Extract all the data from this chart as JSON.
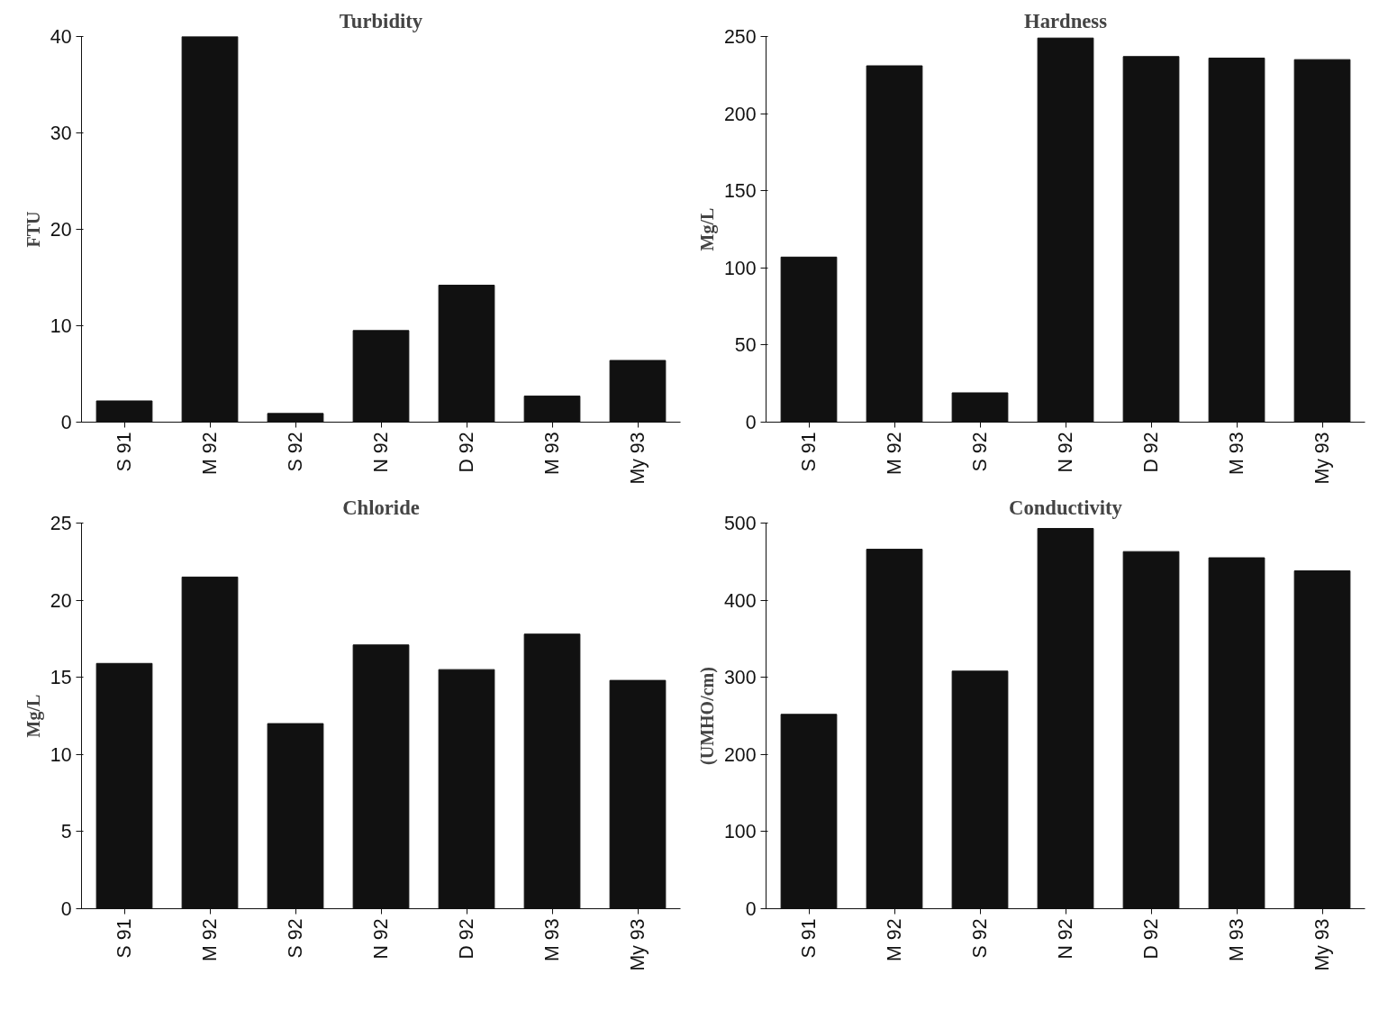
{
  "chart_data": [
    {
      "type": "bar",
      "title": "Turbidity",
      "ylabel": "FTU",
      "categories": [
        "S 91",
        "M 92",
        "S 92",
        "N 92",
        "D 92",
        "M 93",
        "My 93"
      ],
      "values": [
        2.2,
        40,
        0.9,
        9.5,
        14.2,
        2.7,
        6.4
      ],
      "color": "#111111",
      "ylim": [
        0,
        40
      ],
      "yticks": [
        0,
        10,
        20,
        30,
        40
      ]
    },
    {
      "type": "bar",
      "title": "Hardness",
      "ylabel": "Mg/L",
      "categories": [
        "S 91",
        "M 92",
        "S 92",
        "N 92",
        "D 92",
        "M 93",
        "My 93"
      ],
      "values": [
        107,
        231,
        19,
        249,
        237,
        236,
        235
      ],
      "color": "#111111",
      "ylim": [
        0,
        250
      ],
      "yticks": [
        0,
        50,
        100,
        150,
        200,
        250
      ]
    },
    {
      "type": "bar",
      "title": "Chloride",
      "ylabel": "Mg/L",
      "categories": [
        "S 91",
        "M 92",
        "S 92",
        "N 92",
        "D 92",
        "M 93",
        "My 93"
      ],
      "values": [
        15.9,
        21.5,
        12.0,
        17.1,
        15.5,
        17.8,
        14.8
      ],
      "color": "#111111",
      "ylim": [
        0,
        25
      ],
      "yticks": [
        0,
        5,
        10,
        15,
        20,
        25
      ]
    },
    {
      "type": "bar",
      "title": "Conductivity",
      "ylabel": "(UMHO/cm)",
      "categories": [
        "S 91",
        "M 92",
        "S 92",
        "N 92",
        "D 92",
        "M 93",
        "My 93"
      ],
      "values": [
        252,
        466,
        308,
        493,
        463,
        455,
        438
      ],
      "color": "#111111",
      "ylim": [
        0,
        500
      ],
      "yticks": [
        0,
        100,
        200,
        300,
        400,
        500
      ]
    }
  ]
}
